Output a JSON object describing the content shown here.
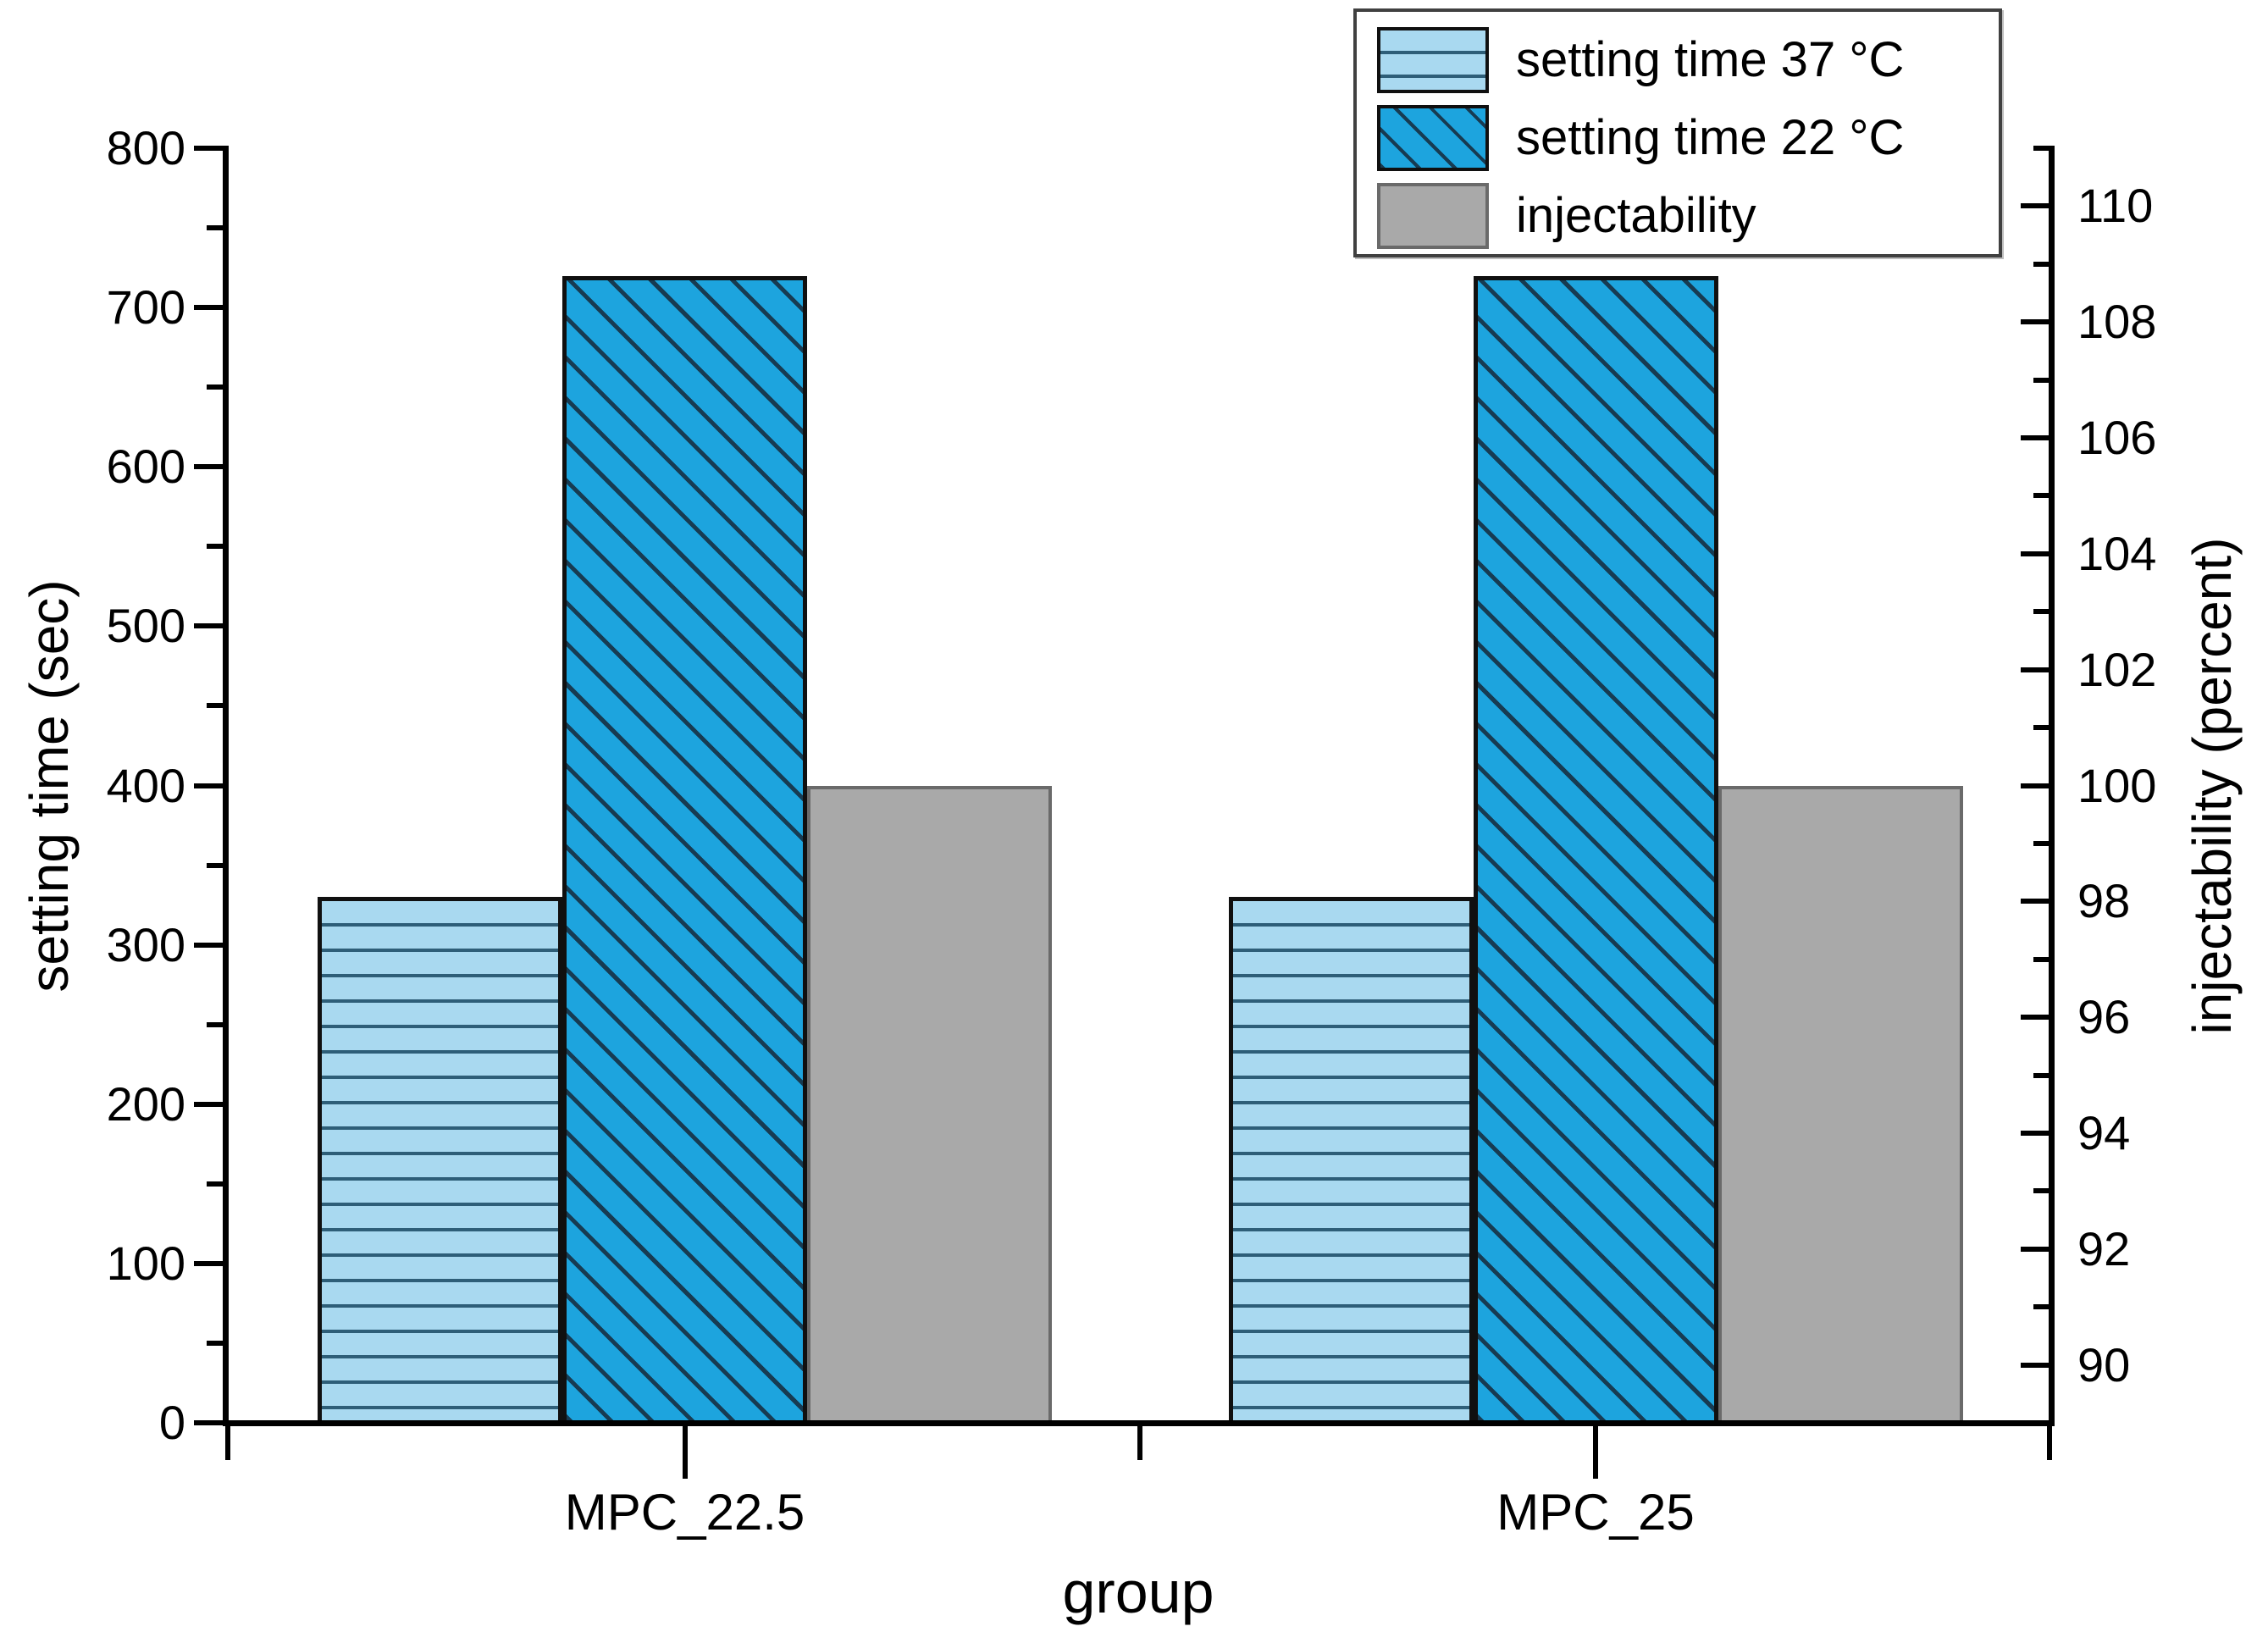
{
  "chart_data": {
    "type": "bar",
    "title": "",
    "categories": [
      "MPC_22.5",
      "MPC_25"
    ],
    "series": [
      {
        "name": "setting time 37 °C",
        "axis": "left",
        "values": [
          330,
          330
        ]
      },
      {
        "name": "setting time 22 °C",
        "axis": "left",
        "values": [
          720,
          720
        ]
      },
      {
        "name": "injectability",
        "axis": "right",
        "values": [
          100,
          100
        ]
      }
    ],
    "axes": {
      "x": {
        "label": "group"
      },
      "left": {
        "label": "setting time (sec)",
        "min": 0,
        "max": 800,
        "major_ticks": [
          0,
          100,
          200,
          300,
          400,
          500,
          600,
          700,
          800
        ],
        "minor_ticks": [
          50,
          150,
          250,
          350,
          450,
          550,
          650,
          750
        ]
      },
      "right": {
        "label": "injectability (percent)",
        "min": 89,
        "max": 111,
        "major_ticks": [
          90,
          92,
          94,
          96,
          98,
          100,
          102,
          104,
          106,
          108,
          110
        ],
        "minor_ticks": [
          91,
          93,
          95,
          97,
          99,
          101,
          103,
          105,
          107,
          109,
          111
        ]
      }
    },
    "legend": {
      "position": "top-right",
      "entries": [
        "setting time 37 °C",
        "setting time 22 °C",
        "injectability"
      ]
    },
    "grid": false
  },
  "colors": {
    "series_37C_fill": "#a9d9f0",
    "series_37C_hatch": "#2e5e78",
    "series_22C_fill": "#1da4de",
    "series_22C_hatch": "#173b52",
    "injectability_fill": "#a9a9a9",
    "axis": "#000000",
    "text": "#000000",
    "background": "#ffffff"
  }
}
